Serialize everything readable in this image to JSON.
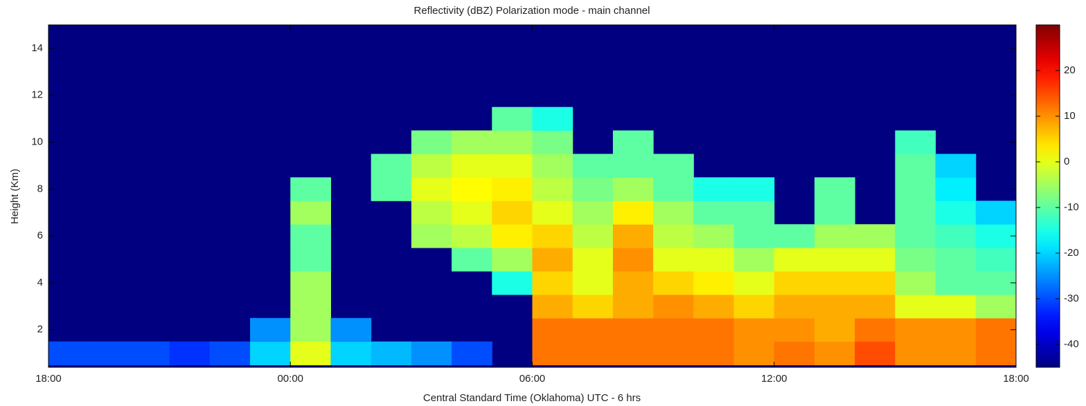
{
  "chart_data": {
    "type": "heatmap",
    "title": "Reflectivity (dBZ) Polarization mode - main channel",
    "x_label": "Central Standard Time (Oklahoma)  UTC - 6 hrs",
    "y_label": "Height (Km)",
    "colormap": "jet",
    "x": [
      0.5,
      1.5,
      2.5,
      3.5,
      4.5,
      5.5,
      6.5,
      7.5,
      8.5,
      9.5,
      10.5,
      11.5,
      12.5,
      13.5,
      14.5,
      15.5,
      16.5,
      17.5,
      18.5,
      19.5,
      20.5,
      21.5,
      22.5,
      23.5
    ],
    "y": [
      1,
      2,
      3,
      4,
      5,
      6,
      7,
      8,
      9,
      10,
      11,
      12,
      13,
      14
    ],
    "z": [
      [
        -30,
        null,
        null,
        null,
        null,
        null,
        null,
        null,
        null,
        null,
        null,
        null,
        null,
        null
      ],
      [
        -30,
        null,
        null,
        null,
        null,
        null,
        null,
        null,
        null,
        null,
        null,
        null,
        null,
        null
      ],
      [
        -30,
        null,
        null,
        null,
        null,
        null,
        null,
        null,
        null,
        null,
        null,
        null,
        null,
        null
      ],
      [
        -32,
        null,
        null,
        null,
        null,
        null,
        null,
        null,
        null,
        null,
        null,
        null,
        null,
        null
      ],
      [
        -30,
        null,
        null,
        null,
        null,
        null,
        null,
        null,
        null,
        null,
        null,
        null,
        null,
        null
      ],
      [
        -20,
        -25,
        null,
        null,
        null,
        null,
        null,
        null,
        null,
        null,
        null,
        null,
        null,
        null
      ],
      [
        0,
        -5,
        -5,
        -5,
        -10,
        -10,
        -5,
        -10,
        null,
        null,
        null,
        null,
        null,
        null
      ],
      [
        -20,
        -25,
        null,
        null,
        null,
        null,
        null,
        null,
        null,
        null,
        null,
        null,
        null,
        null
      ],
      [
        -22,
        null,
        null,
        null,
        null,
        null,
        null,
        -10,
        -10,
        null,
        null,
        null,
        null,
        null
      ],
      [
        -25,
        null,
        null,
        null,
        null,
        -5,
        -3,
        0,
        -3,
        -8,
        null,
        null,
        null,
        null
      ],
      [
        -30,
        null,
        null,
        null,
        -10,
        -3,
        0,
        2,
        0,
        -5,
        null,
        null,
        null,
        null
      ],
      [
        null,
        null,
        null,
        -15,
        -5,
        3,
        5,
        3,
        0,
        -5,
        -10,
        null,
        null,
        null
      ],
      [
        12,
        12,
        8,
        5,
        8,
        5,
        0,
        -3,
        -5,
        -8,
        -15,
        null,
        null,
        null
      ],
      [
        12,
        12,
        5,
        0,
        0,
        -3,
        -5,
        -8,
        -10,
        null,
        null,
        null,
        null,
        null
      ],
      [
        12,
        12,
        8,
        8,
        10,
        8,
        3,
        -5,
        -10,
        -10,
        null,
        null,
        null,
        null
      ],
      [
        12,
        12,
        10,
        5,
        0,
        -3,
        -5,
        -10,
        -10,
        null,
        null,
        null,
        null,
        null
      ],
      [
        12,
        12,
        8,
        3,
        0,
        -5,
        -10,
        -15,
        null,
        null,
        null,
        null,
        null,
        null
      ],
      [
        10,
        10,
        5,
        0,
        -5,
        -10,
        -10,
        -15,
        null,
        null,
        null,
        null,
        null,
        null
      ],
      [
        12,
        10,
        8,
        5,
        0,
        -10,
        null,
        null,
        null,
        null,
        null,
        null,
        null,
        null
      ],
      [
        10,
        8,
        8,
        5,
        0,
        -5,
        -10,
        -10,
        null,
        null,
        null,
        null,
        null,
        null
      ],
      [
        15,
        12,
        8,
        5,
        0,
        -5,
        null,
        null,
        null,
        null,
        null,
        null,
        null,
        null
      ],
      [
        10,
        10,
        0,
        -5,
        -8,
        -10,
        -10,
        -10,
        -10,
        -12,
        null,
        null,
        null,
        null
      ],
      [
        10,
        10,
        0,
        -10,
        -10,
        -12,
        -15,
        -18,
        -20,
        null,
        null,
        null,
        null,
        null
      ],
      [
        12,
        12,
        -5,
        -10,
        -12,
        -15,
        -20,
        null,
        null,
        null,
        null,
        null,
        null,
        null
      ]
    ],
    "xlim": [
      0,
      24
    ],
    "xticks": [
      {
        "value": 0,
        "label": "18:00"
      },
      {
        "value": 6,
        "label": "00:00"
      },
      {
        "value": 12,
        "label": "06:00"
      },
      {
        "value": 18,
        "label": "12:00"
      },
      {
        "value": 24,
        "label": "18:00"
      }
    ],
    "ylim": [
      0.4,
      15
    ],
    "yticks": [
      2,
      4,
      6,
      8,
      10,
      12,
      14
    ],
    "clim": [
      -45,
      30
    ],
    "cticks": [
      -40,
      -30,
      -20,
      -10,
      0,
      10,
      20
    ]
  }
}
